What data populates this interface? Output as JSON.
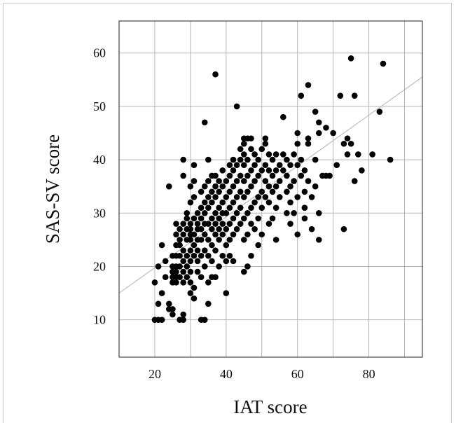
{
  "chart_data": {
    "type": "scatter",
    "xlabel": "IAT score",
    "ylabel": "SAS-SV score",
    "xlim": [
      10,
      95
    ],
    "ylim": [
      3,
      66
    ],
    "x_ticks": [
      20,
      40,
      60,
      80
    ],
    "y_ticks": [
      10,
      20,
      30,
      40,
      50,
      60
    ],
    "x_grid": [
      20,
      30,
      40,
      50,
      60,
      70,
      80,
      90
    ],
    "y_grid": [
      10,
      20,
      30,
      40,
      50,
      60
    ],
    "grid": true,
    "legend": "none",
    "point_color": "#000000",
    "trend_color": "#bdbdbd",
    "trendline": {
      "x": [
        10,
        95
      ],
      "y": [
        15.0,
        55.5
      ]
    },
    "points": [
      [
        20,
        10
      ],
      [
        21,
        10
      ],
      [
        22,
        10
      ],
      [
        20,
        17
      ],
      [
        21,
        13
      ],
      [
        22,
        15
      ],
      [
        21,
        20
      ],
      [
        22,
        24
      ],
      [
        23,
        18
      ],
      [
        23,
        21
      ],
      [
        24,
        12
      ],
      [
        24,
        13
      ],
      [
        25,
        11
      ],
      [
        25,
        12
      ],
      [
        24,
        35
      ],
      [
        25,
        17
      ],
      [
        25,
        18
      ],
      [
        25,
        19
      ],
      [
        25,
        20
      ],
      [
        25,
        22
      ],
      [
        26,
        17
      ],
      [
        26,
        18
      ],
      [
        26,
        19
      ],
      [
        26,
        20
      ],
      [
        26,
        22
      ],
      [
        26,
        24
      ],
      [
        26,
        26
      ],
      [
        26,
        28
      ],
      [
        27,
        18
      ],
      [
        27,
        20
      ],
      [
        27,
        22
      ],
      [
        27,
        24
      ],
      [
        27,
        25
      ],
      [
        27,
        27
      ],
      [
        27,
        10
      ],
      [
        28,
        11
      ],
      [
        28,
        10
      ],
      [
        28,
        40
      ],
      [
        28,
        37
      ],
      [
        28,
        17
      ],
      [
        28,
        19
      ],
      [
        28,
        21
      ],
      [
        28,
        23
      ],
      [
        28,
        26
      ],
      [
        28,
        28
      ],
      [
        29,
        18
      ],
      [
        29,
        20
      ],
      [
        29,
        22
      ],
      [
        29,
        25
      ],
      [
        29,
        27
      ],
      [
        29,
        29
      ],
      [
        29,
        30
      ],
      [
        30,
        15
      ],
      [
        30,
        17
      ],
      [
        30,
        19
      ],
      [
        30,
        21
      ],
      [
        30,
        23
      ],
      [
        30,
        25
      ],
      [
        30,
        26
      ],
      [
        30,
        27
      ],
      [
        30,
        28
      ],
      [
        30,
        32
      ],
      [
        30,
        35
      ],
      [
        31,
        14
      ],
      [
        31,
        16
      ],
      [
        31,
        22
      ],
      [
        31,
        24
      ],
      [
        31,
        26
      ],
      [
        31,
        29
      ],
      [
        31,
        33
      ],
      [
        31,
        36
      ],
      [
        31,
        39
      ],
      [
        32,
        19
      ],
      [
        32,
        21
      ],
      [
        32,
        23
      ],
      [
        32,
        25
      ],
      [
        32,
        27
      ],
      [
        32,
        28
      ],
      [
        32,
        30
      ],
      [
        33,
        18
      ],
      [
        33,
        22
      ],
      [
        33,
        25
      ],
      [
        33,
        27
      ],
      [
        33,
        29
      ],
      [
        33,
        31
      ],
      [
        33,
        34
      ],
      [
        33,
        10
      ],
      [
        34,
        10
      ],
      [
        34,
        47
      ],
      [
        34,
        20
      ],
      [
        34,
        23
      ],
      [
        34,
        26
      ],
      [
        34,
        28
      ],
      [
        34,
        30
      ],
      [
        34,
        32
      ],
      [
        34,
        35
      ],
      [
        35,
        13
      ],
      [
        35,
        17
      ],
      [
        35,
        22
      ],
      [
        35,
        25
      ],
      [
        35,
        28
      ],
      [
        35,
        31
      ],
      [
        35,
        33
      ],
      [
        35,
        36
      ],
      [
        35,
        40
      ],
      [
        36,
        18
      ],
      [
        36,
        21
      ],
      [
        36,
        24
      ],
      [
        36,
        27
      ],
      [
        36,
        29
      ],
      [
        36,
        32
      ],
      [
        36,
        34
      ],
      [
        36,
        37
      ],
      [
        37,
        56
      ],
      [
        37,
        23
      ],
      [
        37,
        26
      ],
      [
        37,
        28
      ],
      [
        37,
        30
      ],
      [
        37,
        33
      ],
      [
        37,
        35
      ],
      [
        37,
        37
      ],
      [
        37,
        18
      ],
      [
        38,
        20
      ],
      [
        38,
        25
      ],
      [
        38,
        27
      ],
      [
        38,
        29
      ],
      [
        38,
        31
      ],
      [
        38,
        34
      ],
      [
        38,
        36
      ],
      [
        39,
        22
      ],
      [
        39,
        26
      ],
      [
        39,
        28
      ],
      [
        39,
        30
      ],
      [
        39,
        32
      ],
      [
        39,
        35
      ],
      [
        39,
        38
      ],
      [
        40,
        15
      ],
      [
        40,
        21
      ],
      [
        40,
        24
      ],
      [
        40,
        27
      ],
      [
        40,
        30
      ],
      [
        40,
        33
      ],
      [
        40,
        36
      ],
      [
        41,
        22
      ],
      [
        41,
        25
      ],
      [
        41,
        28
      ],
      [
        41,
        31
      ],
      [
        41,
        34
      ],
      [
        41,
        37
      ],
      [
        41,
        39
      ],
      [
        42,
        21
      ],
      [
        42,
        26
      ],
      [
        42,
        29
      ],
      [
        42,
        32
      ],
      [
        42,
        35
      ],
      [
        42,
        38
      ],
      [
        42,
        40
      ],
      [
        43,
        27
      ],
      [
        43,
        30
      ],
      [
        43,
        33
      ],
      [
        43,
        36
      ],
      [
        43,
        39
      ],
      [
        43,
        50
      ],
      [
        44,
        28
      ],
      [
        44,
        31
      ],
      [
        44,
        34
      ],
      [
        44,
        37
      ],
      [
        44,
        40
      ],
      [
        44,
        42
      ],
      [
        45,
        19
      ],
      [
        45,
        25
      ],
      [
        45,
        29
      ],
      [
        45,
        33
      ],
      [
        45,
        36
      ],
      [
        45,
        39
      ],
      [
        45,
        41
      ],
      [
        45,
        43
      ],
      [
        45,
        44
      ],
      [
        46,
        20
      ],
      [
        46,
        26
      ],
      [
        46,
        30
      ],
      [
        46,
        34
      ],
      [
        46,
        37
      ],
      [
        46,
        40
      ],
      [
        46,
        44
      ],
      [
        47,
        22
      ],
      [
        47,
        28
      ],
      [
        47,
        31
      ],
      [
        47,
        35
      ],
      [
        47,
        38
      ],
      [
        47,
        42
      ],
      [
        47,
        44
      ],
      [
        48,
        27
      ],
      [
        48,
        32
      ],
      [
        48,
        36
      ],
      [
        48,
        39
      ],
      [
        48,
        41
      ],
      [
        49,
        24
      ],
      [
        49,
        29
      ],
      [
        49,
        33
      ],
      [
        49,
        37
      ],
      [
        49,
        40
      ],
      [
        50,
        26
      ],
      [
        50,
        31
      ],
      [
        50,
        34
      ],
      [
        50,
        38
      ],
      [
        50,
        42
      ],
      [
        51,
        33
      ],
      [
        51,
        36
      ],
      [
        51,
        39
      ],
      [
        51,
        43
      ],
      [
        51,
        44
      ],
      [
        52,
        28
      ],
      [
        52,
        32
      ],
      [
        52,
        35
      ],
      [
        52,
        38
      ],
      [
        52,
        41
      ],
      [
        53,
        29
      ],
      [
        53,
        34
      ],
      [
        53,
        37
      ],
      [
        53,
        40
      ],
      [
        54,
        25
      ],
      [
        54,
        31
      ],
      [
        54,
        35
      ],
      [
        54,
        38
      ],
      [
        54,
        41
      ],
      [
        55,
        36
      ],
      [
        55,
        39
      ],
      [
        55,
        33
      ],
      [
        56,
        48
      ],
      [
        56,
        38
      ],
      [
        56,
        41
      ],
      [
        57,
        30
      ],
      [
        57,
        34
      ],
      [
        57,
        37
      ],
      [
        57,
        40
      ],
      [
        58,
        28
      ],
      [
        58,
        32
      ],
      [
        58,
        35
      ],
      [
        58,
        39
      ],
      [
        59,
        30
      ],
      [
        59,
        36
      ],
      [
        59,
        41
      ],
      [
        60,
        26
      ],
      [
        60,
        33
      ],
      [
        60,
        39
      ],
      [
        60,
        43
      ],
      [
        60,
        45
      ],
      [
        61,
        52
      ],
      [
        61,
        37
      ],
      [
        61,
        40
      ],
      [
        62,
        29
      ],
      [
        62,
        34
      ],
      [
        62,
        38
      ],
      [
        62,
        31
      ],
      [
        63,
        43
      ],
      [
        63,
        44
      ],
      [
        63,
        54
      ],
      [
        63,
        36
      ],
      [
        64,
        27
      ],
      [
        64,
        33
      ],
      [
        65,
        49
      ],
      [
        65,
        35
      ],
      [
        65,
        40
      ],
      [
        66,
        45
      ],
      [
        66,
        47
      ],
      [
        66,
        30
      ],
      [
        66,
        25
      ],
      [
        67,
        37
      ],
      [
        68,
        37
      ],
      [
        68,
        46
      ],
      [
        69,
        37
      ],
      [
        70,
        45
      ],
      [
        71,
        39
      ],
      [
        72,
        52
      ],
      [
        73,
        27
      ],
      [
        73,
        43
      ],
      [
        74,
        41
      ],
      [
        74,
        44
      ],
      [
        75,
        59
      ],
      [
        75,
        43
      ],
      [
        76,
        52
      ],
      [
        76,
        36
      ],
      [
        77,
        41
      ],
      [
        78,
        38
      ],
      [
        81,
        41
      ],
      [
        83,
        49
      ],
      [
        84,
        58
      ],
      [
        86,
        40
      ]
    ]
  }
}
